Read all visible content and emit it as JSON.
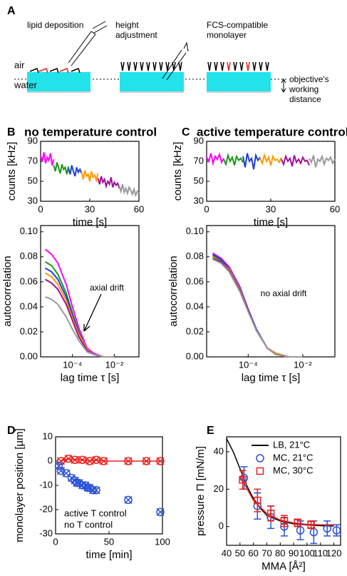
{
  "diagram": {
    "panel": "A",
    "steps": [
      "lipid deposition",
      "height adjustment",
      "FCS-compatible monolayer"
    ],
    "air": "air",
    "water": "water",
    "distance": "objective's working distance"
  },
  "chart_data": [
    {
      "type": "line",
      "panel": "B",
      "title": "no temperature control",
      "x_label": "time [s]",
      "y_label": "counts [kHz]",
      "xlim": [
        0,
        60
      ],
      "xticks": [
        0,
        30,
        60
      ],
      "ylim": [
        30,
        90
      ],
      "yticks": [
        30,
        50,
        70,
        90
      ],
      "series": [
        {
          "color": "#ff00ff",
          "line": true,
          "x": [
            0,
            1,
            2,
            3,
            4,
            5,
            6,
            7,
            8
          ],
          "values": [
            76,
            70,
            79,
            68,
            74,
            71,
            78,
            66,
            72
          ]
        },
        {
          "color": "#1a9a1a",
          "line": true,
          "x": [
            8,
            9,
            10,
            11,
            12,
            13,
            14,
            15,
            16,
            17
          ],
          "values": [
            66,
            60,
            69,
            63,
            58,
            67,
            62,
            64,
            57,
            65
          ]
        },
        {
          "color": "#1f3fd8",
          "line": true,
          "x": [
            17,
            18,
            19,
            20,
            21,
            22,
            23,
            24,
            25
          ],
          "values": [
            63,
            57,
            66,
            60,
            55,
            64,
            59,
            62,
            58
          ]
        },
        {
          "color": "#ff9900",
          "line": true,
          "x": [
            25,
            26,
            27,
            28,
            29,
            30,
            31,
            32,
            33,
            34,
            35
          ],
          "values": [
            59,
            52,
            61,
            55,
            57,
            50,
            60,
            54,
            56,
            51,
            58
          ]
        },
        {
          "color": "#a0109a",
          "line": true,
          "x": [
            35,
            36,
            37,
            38,
            39,
            40,
            41,
            42,
            43,
            44,
            45,
            46,
            47,
            48
          ],
          "values": [
            53,
            47,
            55,
            49,
            52,
            45,
            50,
            47,
            54,
            44,
            49,
            46,
            48,
            43
          ]
        },
        {
          "color": "#999999",
          "line": true,
          "x": [
            48,
            49,
            50,
            51,
            52,
            53,
            54,
            55,
            56,
            57,
            58,
            59,
            60
          ],
          "values": [
            45,
            40,
            47,
            39,
            43,
            38,
            44,
            41,
            37,
            42,
            36,
            40,
            38
          ]
        }
      ]
    },
    {
      "type": "line",
      "panel": "C",
      "title": "active temperature control",
      "x_label": "time [s]",
      "y_label": "counts [kHz]",
      "xlim": [
        0,
        60
      ],
      "xticks": [
        0,
        30,
        60
      ],
      "ylim": [
        30,
        90
      ],
      "yticks": [
        30,
        50,
        70,
        90
      ],
      "series": [
        {
          "color": "#ff00ff",
          "line": true,
          "x": [
            0,
            1,
            2,
            3,
            4,
            5,
            6,
            7,
            8
          ],
          "values": [
            74,
            70,
            78,
            68,
            75,
            72,
            77,
            69,
            73
          ]
        },
        {
          "color": "#1a9a1a",
          "line": true,
          "x": [
            8,
            9,
            10,
            11,
            12,
            13,
            14,
            15,
            16,
            17
          ],
          "values": [
            72,
            67,
            76,
            70,
            74,
            66,
            75,
            71,
            73,
            69
          ]
        },
        {
          "color": "#1f3fd8",
          "line": true,
          "x": [
            17,
            18,
            19,
            20,
            21,
            22,
            23,
            24,
            25
          ],
          "values": [
            75,
            64,
            78,
            70,
            73,
            62,
            76,
            71,
            74
          ]
        },
        {
          "color": "#ff9900",
          "line": true,
          "x": [
            25,
            26,
            27,
            28,
            29,
            30,
            31,
            32,
            33,
            34,
            35
          ],
          "values": [
            73,
            68,
            76,
            70,
            74,
            66,
            75,
            71,
            72,
            69,
            74
          ]
        },
        {
          "color": "#a0109a",
          "line": true,
          "x": [
            35,
            36,
            37,
            38,
            39,
            40,
            41,
            42,
            43,
            44,
            45,
            46,
            47,
            48
          ],
          "values": [
            72,
            67,
            75,
            70,
            73,
            65,
            76,
            69,
            72,
            68,
            74,
            70,
            71,
            66
          ]
        },
        {
          "color": "#999999",
          "line": true,
          "x": [
            48,
            49,
            50,
            51,
            52,
            53,
            54,
            55,
            56,
            57,
            58,
            59,
            60
          ],
          "values": [
            73,
            69,
            76,
            64,
            72,
            70,
            75,
            67,
            73,
            71,
            74,
            68,
            72
          ]
        }
      ]
    },
    {
      "type": "line",
      "log_x": true,
      "x_label": "lag time τ [s]",
      "y_label": "autocorrelation",
      "annotation": "axial drift",
      "xlim": [
        3e-06,
        0.15
      ],
      "xticks": [
        {
          "value": 0.0001,
          "label": "10⁻⁴"
        },
        {
          "value": 0.01,
          "label": "10⁻²"
        }
      ],
      "ylim": [
        0,
        0.105
      ],
      "yticks": [
        {
          "value": 0,
          "label": "0.00"
        },
        {
          "value": 0.02,
          "label": "0.02"
        },
        {
          "value": 0.04,
          "label": "0.04"
        },
        {
          "value": 0.06,
          "label": "0.06"
        },
        {
          "value": 0.08,
          "label": "0.08"
        },
        {
          "value": 0.1,
          "label": "0.10"
        }
      ],
      "series": [
        {
          "color": "#ff00ff",
          "line": true,
          "x": [
            5e-06,
            1e-05,
            2e-05,
            5e-05,
            0.0001,
            0.0002,
            0.0005,
            0.001,
            0.003,
            0.01
          ],
          "values": [
            0.086,
            0.082,
            0.075,
            0.058,
            0.04,
            0.023,
            0.007,
            0.003,
            0,
            0
          ]
        },
        {
          "color": "#1a9a1a",
          "line": true,
          "x": [
            5e-06,
            1e-05,
            2e-05,
            5e-05,
            0.0001,
            0.0002,
            0.0005,
            0.001,
            0.003,
            0.01
          ],
          "values": [
            0.076,
            0.073,
            0.066,
            0.051,
            0.035,
            0.02,
            0.006,
            0.002,
            0,
            0
          ]
        },
        {
          "color": "#1f3fd8",
          "line": true,
          "x": [
            5e-06,
            1e-05,
            2e-05,
            5e-05,
            0.0001,
            0.0002,
            0.0005,
            0.001,
            0.003,
            0.01
          ],
          "values": [
            0.071,
            0.068,
            0.062,
            0.048,
            0.033,
            0.019,
            0.006,
            0.002,
            0,
            0
          ]
        },
        {
          "color": "#ff9900",
          "line": true,
          "x": [
            5e-06,
            1e-05,
            2e-05,
            5e-05,
            0.0001,
            0.0002,
            0.0005,
            0.001,
            0.003,
            0.01
          ],
          "values": [
            0.067,
            0.064,
            0.058,
            0.045,
            0.031,
            0.018,
            0.006,
            0.002,
            0,
            0
          ]
        },
        {
          "color": "#a0109a",
          "line": true,
          "x": [
            5e-06,
            1e-05,
            2e-05,
            5e-05,
            0.0001,
            0.0002,
            0.0005,
            0.001,
            0.003,
            0.01
          ],
          "values": [
            0.062,
            0.059,
            0.054,
            0.042,
            0.029,
            0.016,
            0.005,
            0.002,
            0,
            0
          ]
        },
        {
          "color": "#999999",
          "line": true,
          "x": [
            5e-06,
            1e-05,
            2e-05,
            5e-05,
            0.0001,
            0.0002,
            0.0005,
            0.001,
            0.003,
            0.01
          ],
          "values": [
            0.048,
            0.046,
            0.042,
            0.032,
            0.022,
            0.013,
            0.004,
            0.002,
            0,
            0
          ]
        }
      ]
    },
    {
      "type": "line",
      "log_x": true,
      "x_label": "lag time τ [s]",
      "y_label": "autocorrelation",
      "annotation": "no axial drift",
      "xlim": [
        3e-06,
        0.15
      ],
      "xticks": [
        {
          "value": 0.0001,
          "label": "10⁻⁴"
        },
        {
          "value": 0.01,
          "label": "10⁻²"
        }
      ],
      "ylim": [
        0,
        0.105
      ],
      "yticks": [
        {
          "value": 0,
          "label": "0.00"
        },
        {
          "value": 0.02,
          "label": "0.02"
        },
        {
          "value": 0.04,
          "label": "0.04"
        },
        {
          "value": 0.06,
          "label": "0.06"
        },
        {
          "value": 0.08,
          "label": "0.08"
        },
        {
          "value": 0.1,
          "label": "0.10"
        }
      ],
      "series": [
        {
          "color": "#ff00ff",
          "line": true,
          "x": [
            5e-06,
            1e-05,
            2e-05,
            5e-05,
            0.0001,
            0.0002,
            0.0005,
            0.001,
            0.003,
            0.01
          ],
          "values": [
            0.083,
            0.079,
            0.072,
            0.056,
            0.038,
            0.022,
            0.007,
            0.003,
            0,
            0
          ]
        },
        {
          "color": "#1a9a1a",
          "line": true,
          "x": [
            5e-06,
            1e-05,
            2e-05,
            5e-05,
            0.0001,
            0.0002,
            0.0005,
            0.001,
            0.003,
            0.01
          ],
          "values": [
            0.081,
            0.077,
            0.071,
            0.054,
            0.037,
            0.021,
            0.007,
            0.003,
            0,
            0
          ]
        },
        {
          "color": "#1f3fd8",
          "line": true,
          "x": [
            5e-06,
            1e-05,
            2e-05,
            5e-05,
            0.0001,
            0.0002,
            0.0005,
            0.001,
            0.003,
            0.01
          ],
          "values": [
            0.082,
            0.078,
            0.071,
            0.055,
            0.038,
            0.022,
            0.007,
            0.003,
            0,
            0
          ]
        },
        {
          "color": "#ff9900",
          "line": true,
          "x": [
            5e-06,
            1e-05,
            2e-05,
            5e-05,
            0.0001,
            0.0002,
            0.0005,
            0.001,
            0.003,
            0.01
          ],
          "values": [
            0.08,
            0.076,
            0.07,
            0.054,
            0.037,
            0.021,
            0.007,
            0.003,
            0,
            0
          ]
        },
        {
          "color": "#a0109a",
          "line": true,
          "x": [
            5e-06,
            1e-05,
            2e-05,
            5e-05,
            0.0001,
            0.0002,
            0.0005,
            0.001,
            0.003,
            0.01
          ],
          "values": [
            0.079,
            0.076,
            0.069,
            0.053,
            0.037,
            0.021,
            0.007,
            0.002,
            0,
            0
          ]
        },
        {
          "color": "#999999",
          "line": true,
          "x": [
            5e-06,
            1e-05,
            2e-05,
            5e-05,
            0.0001,
            0.0002,
            0.0005,
            0.001,
            0.003,
            0.01
          ],
          "values": [
            0.078,
            0.075,
            0.068,
            0.052,
            0.036,
            0.021,
            0.007,
            0.002,
            0,
            0
          ]
        }
      ]
    },
    {
      "type": "scatter",
      "panel": "D",
      "x_label": "time [min]",
      "y_label": "monolayer position [µm]",
      "xlim": [
        0,
        100
      ],
      "xticks": [
        0,
        50,
        100
      ],
      "ylim": [
        -30,
        10
      ],
      "yticks": [
        -30,
        -20,
        -10,
        0,
        10
      ],
      "legend": "lower left",
      "legend_markers": false,
      "series": [
        {
          "name": "active T control",
          "color": "#e8201c",
          "line": true,
          "markers": [
            "circle",
            "cross"
          ],
          "x": [
            5,
            12,
            18,
            25,
            32,
            38,
            45,
            68,
            85,
            98
          ],
          "values": [
            0,
            1,
            0.5,
            0.5,
            0,
            0.5,
            0,
            0,
            0,
            0
          ]
        },
        {
          "name": "no T control",
          "color": "#2a52d6",
          "line": false,
          "markers": [
            "circle",
            "cross"
          ],
          "x": [
            3,
            5,
            10,
            15,
            18,
            20,
            22,
            25,
            28,
            30,
            32,
            35,
            38,
            68,
            98
          ],
          "values": [
            -2,
            -4,
            -5,
            -7,
            -8,
            -9,
            -9,
            -10,
            -10,
            -11,
            -11,
            -12,
            -12,
            -16,
            -21
          ]
        }
      ]
    },
    {
      "type": "scatter",
      "panel": "E",
      "x_label": "MMA [Å²]",
      "y_label": "pressure Π [mN/m]",
      "xlim": [
        40,
        125
      ],
      "xticks": [
        40,
        50,
        60,
        70,
        80,
        90,
        100,
        110,
        120
      ],
      "ylim": [
        -10,
        48
      ],
      "yticks": [
        0,
        20,
        40
      ],
      "legend": "upper right",
      "legend_markers": true,
      "series": [
        {
          "name": "LB, 21°C",
          "color": "#000000",
          "line": true,
          "markers": [],
          "x": [
            40,
            45,
            50,
            55,
            60,
            65,
            70,
            80,
            90,
            100,
            110,
            120
          ],
          "values": [
            47,
            40,
            31,
            22,
            15,
            10,
            6,
            3,
            1.5,
            1,
            0.5,
            0.3
          ]
        },
        {
          "name": "MC, 21°C",
          "color": "#2a52d6",
          "line": false,
          "markers": [
            "circle"
          ],
          "x": [
            53,
            63,
            73,
            83,
            95,
            105,
            115,
            122
          ],
          "values": [
            26,
            11,
            5,
            0,
            -2,
            -3,
            -1,
            -2
          ],
          "errors": [
            6,
            7,
            6,
            5,
            5,
            6,
            4,
            3
          ]
        },
        {
          "name": "MC, 30°C",
          "color": "#e8201c",
          "line": false,
          "markers": [
            "square"
          ],
          "x": [
            52,
            63,
            73,
            83,
            93,
            103
          ],
          "values": [
            25,
            14,
            7,
            3,
            2,
            1
          ],
          "errors": [
            5,
            6,
            4,
            3,
            2,
            2
          ]
        },
        {
          "color": "#e8201c",
          "line": true,
          "markers": [],
          "x": [
            50,
            60,
            70,
            80,
            90,
            100,
            110,
            120
          ],
          "values": [
            27,
            14,
            7,
            3.5,
            2,
            1.2,
            1,
            1
          ]
        }
      ]
    }
  ]
}
